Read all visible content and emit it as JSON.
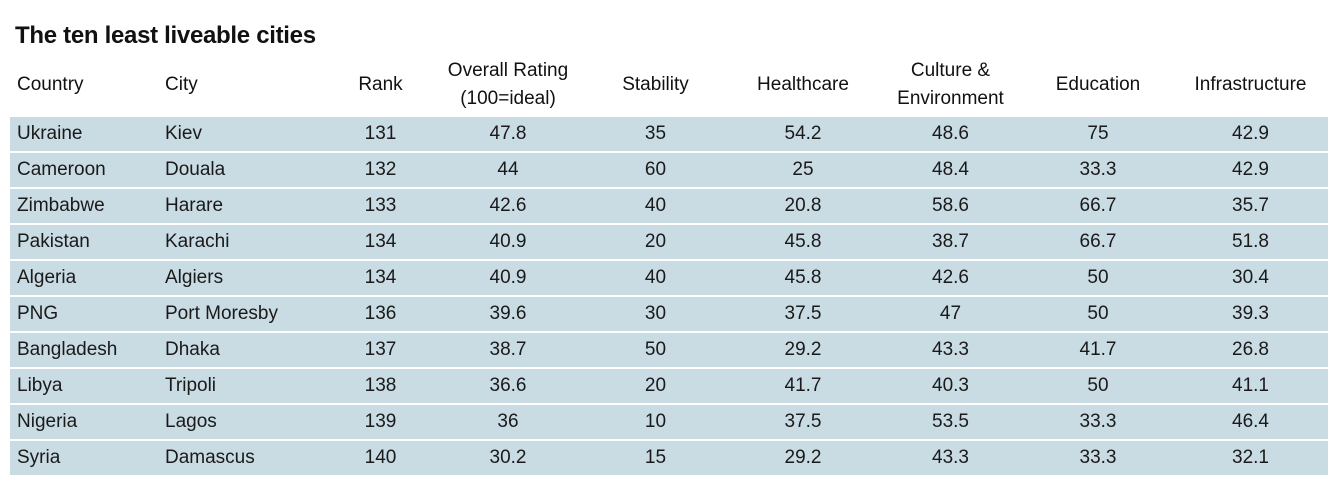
{
  "title": "The ten least liveable cities",
  "colors": {
    "row_background": "#c9dbe3",
    "text": "#1a1a1a"
  },
  "chart_data": {
    "type": "table",
    "title": "The ten least liveable cities",
    "columns": [
      {
        "key": "country",
        "label": "Country"
      },
      {
        "key": "city",
        "label": "City"
      },
      {
        "key": "rank",
        "label": "Rank"
      },
      {
        "key": "overall",
        "label": "Overall Rating",
        "label2": "(100=ideal)"
      },
      {
        "key": "stability",
        "label": "Stability"
      },
      {
        "key": "healthcare",
        "label": "Healthcare"
      },
      {
        "key": "culture",
        "label": "Culture &",
        "label2": "Environment"
      },
      {
        "key": "education",
        "label": "Education"
      },
      {
        "key": "infrastructure",
        "label": "Infrastructure"
      }
    ],
    "rows": [
      {
        "country": "Ukraine",
        "city": "Kiev",
        "rank": "131",
        "overall": "47.8",
        "stability": "35",
        "healthcare": "54.2",
        "culture": "48.6",
        "education": "75",
        "infrastructure": "42.9"
      },
      {
        "country": "Cameroon",
        "city": "Douala",
        "rank": "132",
        "overall": "44",
        "stability": "60",
        "healthcare": "25",
        "culture": "48.4",
        "education": "33.3",
        "infrastructure": "42.9"
      },
      {
        "country": "Zimbabwe",
        "city": "Harare",
        "rank": "133",
        "overall": "42.6",
        "stability": "40",
        "healthcare": "20.8",
        "culture": "58.6",
        "education": "66.7",
        "infrastructure": "35.7"
      },
      {
        "country": "Pakistan",
        "city": "Karachi",
        "rank": "134",
        "overall": "40.9",
        "stability": "20",
        "healthcare": "45.8",
        "culture": "38.7",
        "education": "66.7",
        "infrastructure": "51.8"
      },
      {
        "country": "Algeria",
        "city": "Algiers",
        "rank": "134",
        "overall": "40.9",
        "stability": "40",
        "healthcare": "45.8",
        "culture": "42.6",
        "education": "50",
        "infrastructure": "30.4"
      },
      {
        "country": "PNG",
        "city": "Port Moresby",
        "rank": "136",
        "overall": "39.6",
        "stability": "30",
        "healthcare": "37.5",
        "culture": "47",
        "education": "50",
        "infrastructure": "39.3"
      },
      {
        "country": "Bangladesh",
        "city": "Dhaka",
        "rank": "137",
        "overall": "38.7",
        "stability": "50",
        "healthcare": "29.2",
        "culture": "43.3",
        "education": "41.7",
        "infrastructure": "26.8"
      },
      {
        "country": "Libya",
        "city": "Tripoli",
        "rank": "138",
        "overall": "36.6",
        "stability": "20",
        "healthcare": "41.7",
        "culture": "40.3",
        "education": "50",
        "infrastructure": "41.1"
      },
      {
        "country": "Nigeria",
        "city": "Lagos",
        "rank": "139",
        "overall": "36",
        "stability": "10",
        "healthcare": "37.5",
        "culture": "53.5",
        "education": "33.3",
        "infrastructure": "46.4"
      },
      {
        "country": "Syria",
        "city": "Damascus",
        "rank": "140",
        "overall": "30.2",
        "stability": "15",
        "healthcare": "29.2",
        "culture": "43.3",
        "education": "33.3",
        "infrastructure": "32.1"
      }
    ]
  }
}
